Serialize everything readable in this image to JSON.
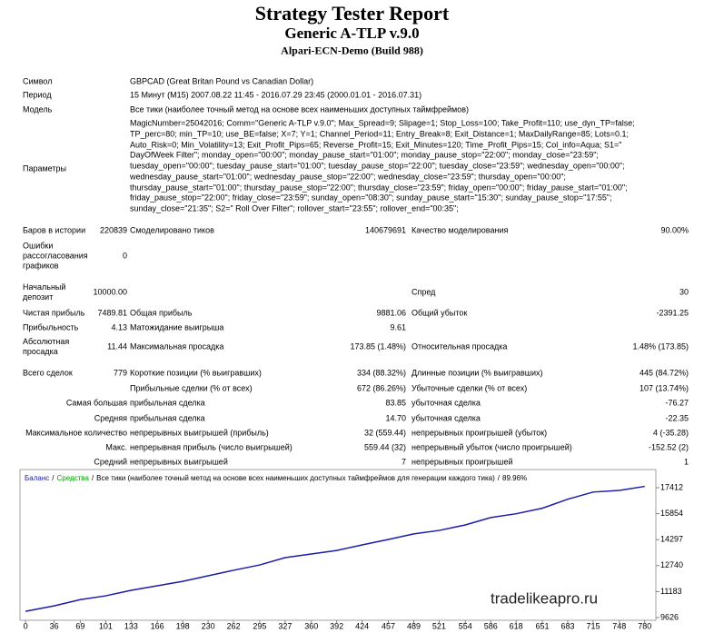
{
  "header": {
    "title": "Strategy Tester Report",
    "subtitle": "Generic A-TLP v.9.0",
    "server": "Alpari-ECN-Demo (Build 988)"
  },
  "info": [
    {
      "label": "Символ",
      "value": "GBPCAD (Great Britan Pound vs Canadian Dollar)"
    },
    {
      "label": "Период",
      "value": "15 Минут (M15) 2007.08.22 11:45 - 2016.07.29 23:45 (2000.01.01 - 2016.07.31)"
    },
    {
      "label": "Модель",
      "value": "Все тики (наиболее точный метод на основе всех наименьших доступных таймфреймов)"
    }
  ],
  "parameters": {
    "label": "Параметры",
    "lines": [
      "MagicNumber=25042016; Comm=\"Generic A-TLP v.9.0\"; Max_Spread=9; Slipage=1; Stop_Loss=100; Take_Profit=110; use_dyn_TP=false;",
      "TP_perc=80; min_TP=10; use_BE=false; X=7; Y=1; Channel_Period=11; Entry_Break=8; Exit_Distance=1; MaxDailyRange=85; Lots=0.1;",
      "Auto_Risk=0; Min_Volatility=13; Exit_Profit_Pips=65; Reverse_Profit=15; Exit_Minutes=120; Time_Profit_Pips=15; Col_info=Aqua; S1=\"",
      "DayOfWeek Filter\"; monday_open=\"00:00\"; monday_pause_start=\"01:00\"; monday_pause_stop=\"22:00\"; monday_close=\"23:59\";",
      "tuesday_open=\"00:00\"; tuesday_pause_start=\"01:00\"; tuesday_pause_stop=\"22:00\"; tuesday_close=\"23:59\"; wednesday_open=\"00:00\";",
      "wednesday_pause_start=\"01:00\"; wednesday_pause_stop=\"22:00\"; wednesday_close=\"23:59\"; thursday_open=\"00:00\";",
      "thursday_pause_start=\"01:00\"; thursday_pause_stop=\"22:00\"; thursday_close=\"23:59\"; friday_open=\"00:00\"; friday_pause_start=\"01:00\";",
      "friday_pause_stop=\"22:00\"; friday_close=\"23:59\"; sunday_open=\"08:30\"; sunday_pause_start=\"15:30\"; sunday_pause_stop=\"17:55\";",
      "sunday_close=\"21:35\"; S2=\" Roll Over Filter\"; rollover_start=\"23:55\"; rollover_end=\"00:35\";"
    ]
  },
  "stats": [
    {
      "l1": "Баров в истории",
      "v1": "220839",
      "l2": "Смоделировано тиков",
      "v2": "140679691",
      "l3": "Качество моделирования",
      "v3": "90.00%"
    },
    {
      "l1": "Ошибки рассогласования графиков",
      "v1": "0"
    },
    {
      "l1": "Начальный депозит",
      "v1": "10000.00",
      "l3": "Спред",
      "v3": "30"
    },
    {
      "l1": "Чистая прибыль",
      "v1": "7489.81",
      "l2": "Общая прибыль",
      "v2": "9881.06",
      "l3": "Общий убыток",
      "v3": "-2391.25"
    },
    {
      "l1": "Прибыльность",
      "v1": "4.13",
      "l2": "Матожидание выигрыша",
      "v2": "9.61"
    },
    {
      "l1": "Абсолютная просадка",
      "v1": "11.44",
      "l2": "Максимальная просадка",
      "v2": "173.85 (1.48%)",
      "l3": "Относительная просадка",
      "v3": "1.48% (173.85)"
    },
    {
      "l1": "Всего сделок",
      "v1": "779",
      "l2": "Короткие позиции (% выигравших)",
      "v2": "334 (88.32%)",
      "l3": "Длинные позиции (% выигравших)",
      "v3": "445 (84.72%)"
    },
    {
      "l2": "Прибыльные сделки (% от всех)",
      "v2": "672 (86.26%)",
      "l3": "Убыточные сделки (% от всех)",
      "v3": "107 (13.74%)"
    },
    {
      "l1": "Самая большая",
      "l2": "прибыльная сделка",
      "v2": "83.85",
      "l3": "убыточная сделка",
      "v3": "-76.27"
    },
    {
      "l1": "Средняя",
      "l2": "прибыльная сделка",
      "v2": "14.70",
      "l3": "убыточная сделка",
      "v3": "-22.35"
    },
    {
      "l1": "Максимальное количество",
      "l2": "непрерывных выигрышей (прибыль)",
      "v2": "32 (559.44)",
      "l3": "непрерывных проигрышей (убыток)",
      "v3": "4 (-35.28)"
    },
    {
      "l1": "Макс.",
      "l2": "непрерывная прибыль (число выигрышей)",
      "v2": "559.44 (32)",
      "l3": "непрерывный убыток (число проигрышей)",
      "v3": "-152.52 (2)"
    },
    {
      "l1": "Средний",
      "l2": "непрерывных выигрышей",
      "v2": "7",
      "l3": "непрерывных проигрышей",
      "v3": "1"
    }
  ],
  "chart_data": {
    "type": "line",
    "equity_name": "Средства",
    "equity_color": "#00a000",
    "separator": "/",
    "description": "Все тики (наиболее точный метод на основе всех наименьших доступных таймфреймов для генерации каждого тика)",
    "quality": "89.96%",
    "watermark": "tradelikeapro.ru",
    "x": [
      0,
      36,
      69,
      101,
      133,
      166,
      198,
      230,
      262,
      295,
      327,
      360,
      392,
      424,
      457,
      489,
      521,
      554,
      586,
      618,
      651,
      683,
      715,
      748,
      780
    ],
    "series": [
      {
        "name": "Баланс",
        "color": "#1c1ca8",
        "values": [
          10000,
          10330,
          10700,
          10930,
          11260,
          11530,
          11800,
          12130,
          12460,
          12780,
          13220,
          13440,
          13650,
          13980,
          14310,
          14640,
          14850,
          15180,
          15620,
          15850,
          16180,
          16720,
          17150,
          17250,
          17490
        ]
      }
    ],
    "xlim": [
      -7,
      794
    ],
    "ylim": [
      9463,
      18501
    ],
    "xticks": [
      0,
      36,
      69,
      101,
      133,
      166,
      198,
      230,
      262,
      295,
      327,
      360,
      392,
      424,
      457,
      489,
      521,
      554,
      586,
      618,
      651,
      683,
      715,
      748,
      780
    ],
    "yticks": [
      9626,
      11183,
      12740,
      14297,
      15854,
      17412
    ],
    "grid": false
  }
}
